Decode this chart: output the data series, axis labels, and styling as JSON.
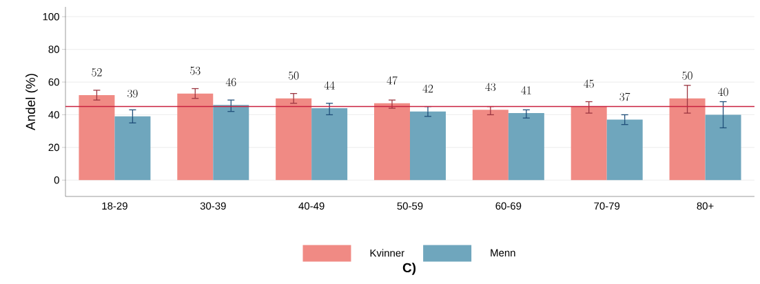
{
  "chart_data": {
    "type": "bar",
    "ylabel": "Andel (%)",
    "categories": [
      "18-29",
      "30-39",
      "40-49",
      "50-59",
      "60-69",
      "70-79",
      "80+"
    ],
    "series": [
      {
        "name": "Kvinner",
        "color": "#f08a84",
        "values": [
          52,
          53,
          50,
          47,
          43,
          45,
          50
        ],
        "errors": [
          [
            49,
            55
          ],
          [
            50,
            56
          ],
          [
            47,
            53
          ],
          [
            44,
            49
          ],
          [
            40,
            45
          ],
          [
            41,
            48
          ],
          [
            41,
            58
          ]
        ]
      },
      {
        "name": "Menn",
        "color": "#6fa6bd",
        "values": [
          39,
          46,
          44,
          42,
          41,
          37,
          40
        ],
        "errors": [
          [
            35,
            43
          ],
          [
            42,
            49
          ],
          [
            40,
            47
          ],
          [
            39,
            45
          ],
          [
            38,
            43
          ],
          [
            34,
            40
          ],
          [
            32,
            48
          ]
        ]
      }
    ],
    "ylim": [
      -10,
      106
    ],
    "yticks": [
      0,
      20,
      40,
      60,
      80,
      100
    ],
    "grid": "y",
    "legend": "bottom",
    "data_labels": true,
    "ref_lines": [
      {
        "axis": "y",
        "value": 45,
        "color": "#c8203f"
      }
    ],
    "annotations": [
      "C)"
    ]
  }
}
